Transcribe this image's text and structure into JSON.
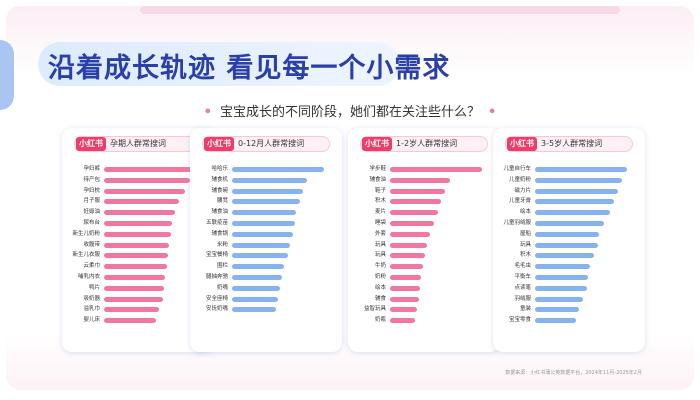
{
  "headline": "沿着成长轨迹 看见每一个小需求",
  "subtitle": "宝宝成长的不同阶段，她们都在关注些什么？",
  "badge_text": "小红书",
  "colors": {
    "pink": "#f0789e",
    "blue": "#86b3ee",
    "accent": "#ef3c6b",
    "title": "#2a3fa8"
  },
  "footer": "数据来源：小红书蒲公英数据平台，2024年11月-2025年2月",
  "chart_data": [
    {
      "type": "bar",
      "orientation": "horizontal",
      "title": "孕期人群常搜词",
      "color": "pink",
      "categories": [
        "孕妇裤",
        "待产包",
        "孕妇枕",
        "月子服",
        "妊娠油",
        "尿布台",
        "新生儿奶粉",
        "收腹带",
        "新生儿衣服",
        "云柔巾",
        "哺乳内衣",
        "鸭片",
        "吸奶器",
        "溢乳巾",
        "婴儿床"
      ],
      "values": [
        100,
        94,
        88,
        82,
        77,
        74,
        73,
        71,
        70,
        68,
        66,
        65,
        64,
        60,
        56
      ]
    },
    {
      "type": "bar",
      "orientation": "horizontal",
      "title": "0-12月人群常搜词",
      "color": "blue",
      "categories": [
        "哈哈乐",
        "辅食机",
        "辅食碗",
        "腰凳",
        "辅食油",
        "五联疫苗",
        "辅食锅",
        "米粉",
        "宝宝餐椅",
        "围栏",
        "腿抽奔驰",
        "奶嘴",
        "安全座椅",
        "安抚奶嘴"
      ],
      "values": [
        100,
        82,
        77,
        74,
        70,
        68,
        66,
        63,
        61,
        56,
        54,
        52,
        50,
        48
      ]
    },
    {
      "type": "bar",
      "orientation": "horizontal",
      "title": "1-2岁人群常搜词",
      "color": "pink",
      "categories": [
        "学步鞋",
        "辅食油",
        "鞋子",
        "积木",
        "麦片",
        "睡袋",
        "外套",
        "玩具",
        "玩具",
        "牛奶",
        "奶粉",
        "绘本",
        "辅食",
        "益智玩具",
        "奶瓶"
      ],
      "values": [
        100,
        65,
        60,
        55,
        52,
        48,
        44,
        40,
        38,
        36,
        34,
        33,
        31,
        29,
        27
      ]
    },
    {
      "type": "bar",
      "orientation": "horizontal",
      "title": "3-5岁人群常搜词",
      "color": "blue",
      "categories": [
        "儿童自行车",
        "儿童奶粉",
        "磁力片",
        "儿童牙膏",
        "绘本",
        "儿童羽绒服",
        "屋船",
        "玩具",
        "积木",
        "毛毛虫",
        "平衡车",
        "点读笔",
        "羽绒服",
        "童装",
        "宝宝零食"
      ],
      "values": [
        100,
        95,
        90,
        86,
        82,
        75,
        70,
        68,
        64,
        60,
        58,
        56,
        52,
        48,
        45
      ]
    }
  ]
}
